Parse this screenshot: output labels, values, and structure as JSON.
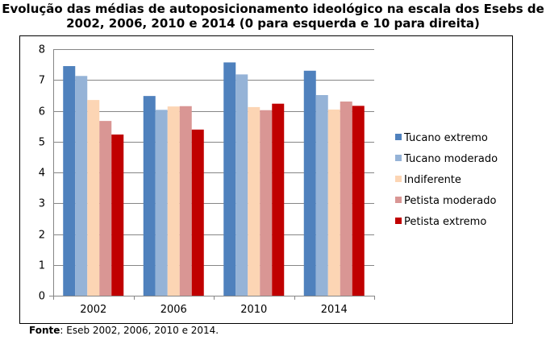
{
  "title_line1": "Evolução das médias de autoposicionamento ideológico na escala dos Esebs de",
  "title_line2": "2002, 2006, 2010 e 2014 (0 para esquerda e 10 para direita)",
  "source_label": "Fonte",
  "source_text": ": Eseb 2002, 2006, 2010 e 2014.",
  "chart_data": {
    "type": "bar",
    "categories": [
      "2002",
      "2006",
      "2010",
      "2014"
    ],
    "ylim": [
      0,
      8
    ],
    "yticks": [
      0,
      1,
      2,
      3,
      4,
      5,
      6,
      7,
      8
    ],
    "grid": true,
    "legend_position": "right",
    "series": [
      {
        "name": "Tucano extremo",
        "color": "#4f81bd",
        "values": [
          7.45,
          6.48,
          7.57,
          7.3
        ]
      },
      {
        "name": "Tucano moderado",
        "color": "#95b3d7",
        "values": [
          7.13,
          6.03,
          7.18,
          6.51
        ]
      },
      {
        "name": "Indiferente",
        "color": "#fcd5b4",
        "values": [
          6.35,
          6.14,
          6.12,
          6.04
        ]
      },
      {
        "name": "Petista moderado",
        "color": "#d99694",
        "values": [
          5.67,
          6.15,
          6.02,
          6.3
        ]
      },
      {
        "name": "Petista extremo",
        "color": "#c00000",
        "values": [
          5.23,
          5.39,
          6.23,
          6.16
        ]
      }
    ]
  }
}
